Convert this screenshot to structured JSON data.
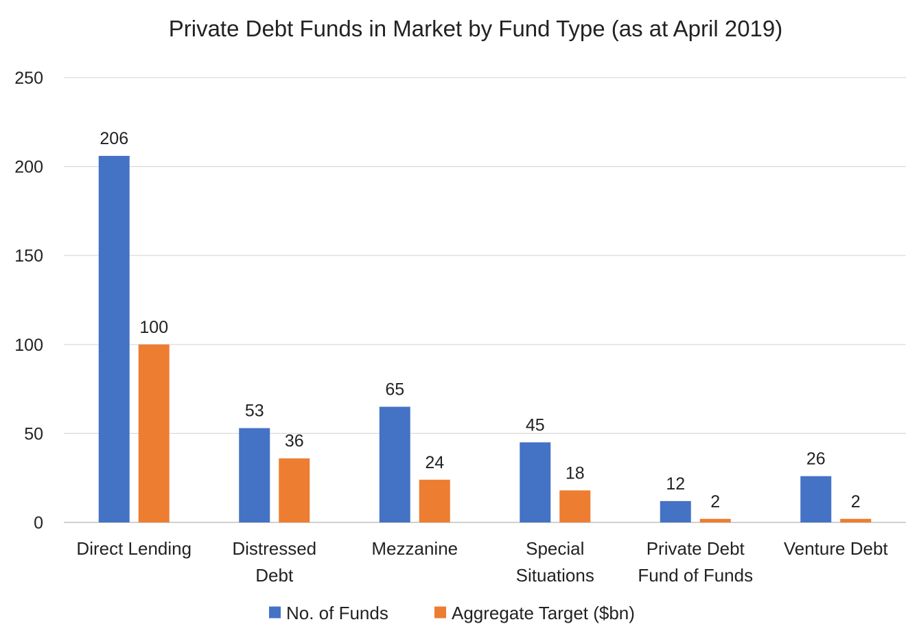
{
  "chart_data": {
    "type": "bar",
    "title": "Private Debt Funds in Market by Fund Type (as at April 2019)",
    "xlabel": "",
    "ylabel": "",
    "ylim": [
      0,
      250
    ],
    "yticks": [
      "0",
      "50",
      "100",
      "150",
      "200",
      "250"
    ],
    "ytick_values": [
      0,
      50,
      100,
      150,
      200,
      250
    ],
    "grid": true,
    "legend_position": "bottom",
    "categories": [
      [
        "Direct Lending"
      ],
      [
        "Distressed",
        "Debt"
      ],
      [
        "Mezzanine"
      ],
      [
        "Special",
        "Situations"
      ],
      [
        "Private Debt",
        "Fund of Funds"
      ],
      [
        "Venture Debt"
      ]
    ],
    "series": [
      {
        "name": "No. of Funds",
        "color": "#4472C4",
        "values": [
          206,
          53,
          65,
          45,
          12,
          26
        ],
        "labels": [
          "206",
          "53",
          "65",
          "45",
          "12",
          "26"
        ]
      },
      {
        "name": "Aggregate Target ($bn)",
        "color": "#ED7D31",
        "values": [
          100,
          36,
          24,
          18,
          2,
          2
        ],
        "labels": [
          "100",
          "36",
          "24",
          "18",
          "2",
          "2"
        ]
      }
    ]
  }
}
